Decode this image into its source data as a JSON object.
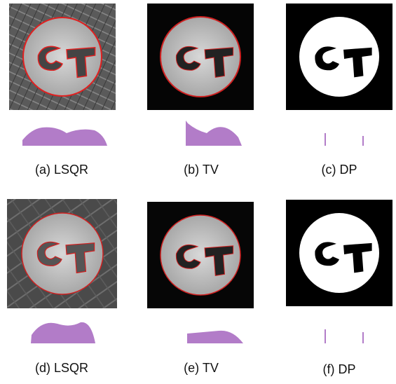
{
  "panels": [
    {
      "caption": "(a) LSQR"
    },
    {
      "caption": "(b) TV"
    },
    {
      "caption": "(c) DP"
    },
    {
      "caption": "(d) LSQR"
    },
    {
      "caption": "(e) TV"
    },
    {
      "caption": "(f) DP"
    }
  ]
}
